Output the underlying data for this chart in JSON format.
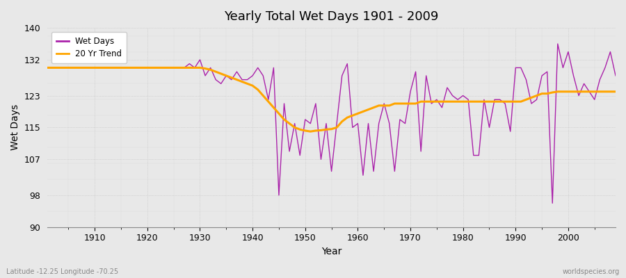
{
  "title": "Yearly Total Wet Days 1901 - 2009",
  "xlabel": "Year",
  "ylabel": "Wet Days",
  "ylim": [
    90,
    140
  ],
  "yticks": [
    90,
    98,
    107,
    115,
    123,
    132,
    140
  ],
  "xlim": [
    1901,
    2009
  ],
  "xticks": [
    1910,
    1920,
    1930,
    1940,
    1950,
    1960,
    1970,
    1980,
    1990,
    2000
  ],
  "wet_days_color": "#AA22AA",
  "trend_color": "#FFA500",
  "bg_color": "#E8E8E8",
  "plot_bg_color": "#E8E8E8",
  "legend_labels": [
    "Wet Days",
    "20 Yr Trend"
  ],
  "subtitle_left": "Latitude -12.25 Longitude -70.25",
  "subtitle_right": "worldspecies.org",
  "years": [
    1901,
    1902,
    1903,
    1904,
    1905,
    1906,
    1907,
    1908,
    1909,
    1910,
    1911,
    1912,
    1913,
    1914,
    1915,
    1916,
    1917,
    1918,
    1919,
    1920,
    1921,
    1922,
    1923,
    1924,
    1925,
    1926,
    1927,
    1928,
    1929,
    1930,
    1931,
    1932,
    1933,
    1934,
    1935,
    1936,
    1937,
    1938,
    1939,
    1940,
    1941,
    1942,
    1943,
    1944,
    1945,
    1946,
    1947,
    1948,
    1949,
    1950,
    1951,
    1952,
    1953,
    1954,
    1955,
    1956,
    1957,
    1958,
    1959,
    1960,
    1961,
    1962,
    1963,
    1964,
    1965,
    1966,
    1967,
    1968,
    1969,
    1970,
    1971,
    1972,
    1973,
    1974,
    1975,
    1976,
    1977,
    1978,
    1979,
    1980,
    1981,
    1982,
    1983,
    1984,
    1985,
    1986,
    1987,
    1988,
    1989,
    1990,
    1991,
    1992,
    1993,
    1994,
    1995,
    1996,
    1997,
    1998,
    1999,
    2000,
    2001,
    2002,
    2003,
    2004,
    2005,
    2006,
    2007,
    2008,
    2009
  ],
  "wet_days": [
    130,
    130,
    130,
    130,
    130,
    130,
    130,
    130,
    130,
    130,
    130,
    130,
    130,
    130,
    130,
    130,
    130,
    130,
    130,
    130,
    130,
    130,
    130,
    130,
    130,
    130,
    130,
    131,
    130,
    132,
    128,
    130,
    127,
    126,
    128,
    127,
    129,
    127,
    127,
    128,
    130,
    128,
    122,
    130,
    98,
    121,
    109,
    116,
    108,
    117,
    116,
    121,
    107,
    116,
    104,
    116,
    128,
    131,
    115,
    116,
    103,
    116,
    104,
    116,
    121,
    116,
    104,
    117,
    116,
    124,
    129,
    109,
    128,
    121,
    122,
    120,
    125,
    123,
    122,
    123,
    122,
    108,
    108,
    122,
    115,
    122,
    122,
    121,
    114,
    130,
    130,
    127,
    121,
    122,
    128,
    129,
    96,
    136,
    130,
    134,
    128,
    123,
    126,
    124,
    122,
    127,
    130,
    134,
    128
  ],
  "trend_manual": [
    130.0,
    130.0,
    130.0,
    130.0,
    130.0,
    130.0,
    130.0,
    130.0,
    130.0,
    130.0,
    130.0,
    130.0,
    130.0,
    130.0,
    130.0,
    130.0,
    130.0,
    130.0,
    130.0,
    130.0,
    130.0,
    130.0,
    130.0,
    130.0,
    130.0,
    130.0,
    130.0,
    130.0,
    130.0,
    130.0,
    129.8,
    129.5,
    129.0,
    128.5,
    128.0,
    127.5,
    127.0,
    126.5,
    126.0,
    125.5,
    124.5,
    123.0,
    121.5,
    120.0,
    118.5,
    117.0,
    116.0,
    115.0,
    114.5,
    114.2,
    114.0,
    114.2,
    114.3,
    114.5,
    114.6,
    115.0,
    116.5,
    117.5,
    118.0,
    118.5,
    119.0,
    119.5,
    120.0,
    120.5,
    120.5,
    120.5,
    121.0,
    121.0,
    121.0,
    121.0,
    121.0,
    121.5,
    121.5,
    121.5,
    121.5,
    121.5,
    121.5,
    121.5,
    121.5,
    121.5,
    121.5,
    121.5,
    121.5,
    121.5,
    121.5,
    121.5,
    121.5,
    121.5,
    121.5,
    121.5,
    121.5,
    122.0,
    122.5,
    123.0,
    123.5,
    123.5,
    123.8,
    124.0,
    124.0,
    124.0,
    124.0,
    124.0,
    124.0,
    124.0,
    124.0,
    124.0,
    124.0,
    124.0,
    124.0
  ]
}
